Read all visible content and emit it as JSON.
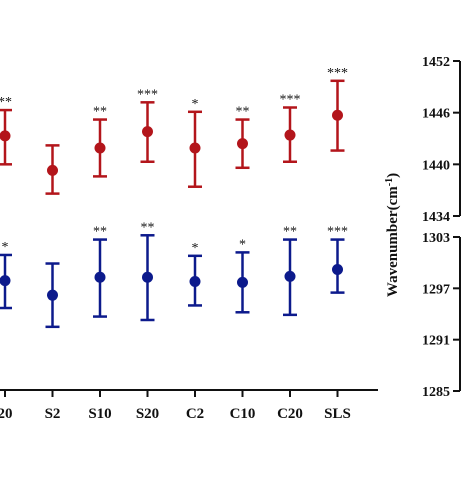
{
  "chart_data": {
    "type": "scatter",
    "categories": [
      "20",
      "S2",
      "S10",
      "S20",
      "C2",
      "C10",
      "C20",
      "SLS"
    ],
    "y_title": "Wavenumber(cm",
    "y_title_sup": "-1",
    "y_title_close": ")",
    "upper_axis": {
      "ylim": [
        1434,
        1452
      ],
      "ticks": [
        1434,
        1440,
        1446,
        1452
      ],
      "tick_labels": [
        "1434",
        "1440",
        "1446",
        "1452"
      ]
    },
    "lower_axis": {
      "ylim": [
        1285,
        1303
      ],
      "ticks": [
        1285,
        1291,
        1297,
        1303
      ],
      "tick_labels": [
        "1285",
        "1291",
        "1297",
        "1303"
      ]
    },
    "series": [
      {
        "axis": "upper",
        "color": "#b3151b",
        "points": [
          {
            "category": "20",
            "mean": 1443.3,
            "low": 1440.0,
            "high": 1446.3,
            "sig": "**"
          },
          {
            "category": "S2",
            "mean": 1439.3,
            "low": 1436.6,
            "high": 1442.2,
            "sig": ""
          },
          {
            "category": "S10",
            "mean": 1441.9,
            "low": 1438.6,
            "high": 1445.2,
            "sig": "**"
          },
          {
            "category": "S20",
            "mean": 1443.8,
            "low": 1440.3,
            "high": 1447.2,
            "sig": "***"
          },
          {
            "category": "C2",
            "mean": 1441.9,
            "low": 1437.4,
            "high": 1446.1,
            "sig": "*"
          },
          {
            "category": "C10",
            "mean": 1442.4,
            "low": 1439.6,
            "high": 1445.2,
            "sig": "**"
          },
          {
            "category": "C20",
            "mean": 1443.4,
            "low": 1440.3,
            "high": 1446.6,
            "sig": "***"
          },
          {
            "category": "SLS",
            "mean": 1445.7,
            "low": 1441.6,
            "high": 1449.7,
            "sig": "***"
          }
        ]
      },
      {
        "axis": "lower",
        "color": "#0c1a8c",
        "points": [
          {
            "category": "20",
            "mean": 1297.9,
            "low": 1294.7,
            "high": 1300.9,
            "sig": "*"
          },
          {
            "category": "S2",
            "mean": 1296.2,
            "low": 1292.5,
            "high": 1299.9,
            "sig": ""
          },
          {
            "category": "S10",
            "mean": 1298.3,
            "low": 1293.7,
            "high": 1302.7,
            "sig": "**"
          },
          {
            "category": "S20",
            "mean": 1298.3,
            "low": 1293.3,
            "high": 1303.2,
            "sig": "**"
          },
          {
            "category": "C2",
            "mean": 1297.8,
            "low": 1295.0,
            "high": 1300.8,
            "sig": "*"
          },
          {
            "category": "C10",
            "mean": 1297.7,
            "low": 1294.2,
            "high": 1301.2,
            "sig": "*"
          },
          {
            "category": "C20",
            "mean": 1298.4,
            "low": 1293.9,
            "high": 1302.7,
            "sig": "**"
          },
          {
            "category": "SLS",
            "mean": 1299.2,
            "low": 1296.5,
            "high": 1302.7,
            "sig": "***"
          }
        ]
      }
    ]
  }
}
